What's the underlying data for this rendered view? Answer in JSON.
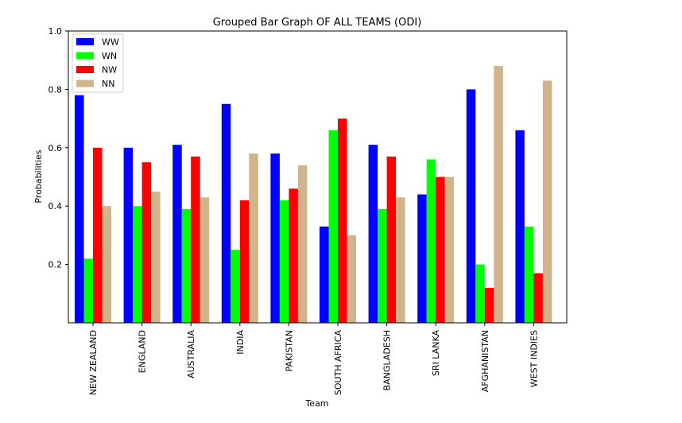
{
  "chart_data": {
    "type": "bar",
    "title": "Grouped Bar Graph OF ALL TEAMS (ODI)",
    "xlabel": "Team",
    "ylabel": "Probabilities",
    "ylim": [
      0,
      1.0
    ],
    "yticks": [
      "0.2",
      "0.4",
      "0.6",
      "0.8",
      "1.0"
    ],
    "legend_position": "top-left",
    "grid": false,
    "categories": [
      "NEW ZEALAND",
      "ENGLAND",
      "AUSTRALIA",
      "INDIA",
      "PAKISTAN",
      "SOUTH AFRICA",
      "BANGLADESH",
      "SRI LANKA",
      "AFGHANISTAN",
      "WEST INDIES"
    ],
    "series": [
      {
        "name": "WW",
        "color": "#0000ff",
        "values": [
          0.78,
          0.6,
          0.61,
          0.75,
          0.58,
          0.33,
          0.61,
          0.44,
          0.8,
          0.66
        ]
      },
      {
        "name": "WN",
        "color": "#00ff00",
        "values": [
          0.22,
          0.4,
          0.39,
          0.25,
          0.42,
          0.66,
          0.39,
          0.56,
          0.2,
          0.33
        ]
      },
      {
        "name": "NW",
        "color": "#ff0000",
        "values": [
          0.6,
          0.55,
          0.57,
          0.42,
          0.46,
          0.7,
          0.57,
          0.5,
          0.12,
          0.17
        ]
      },
      {
        "name": "NN",
        "color": "#d2b48c",
        "values": [
          0.4,
          0.45,
          0.43,
          0.58,
          0.54,
          0.3,
          0.43,
          0.5,
          0.88,
          0.83
        ]
      }
    ]
  }
}
